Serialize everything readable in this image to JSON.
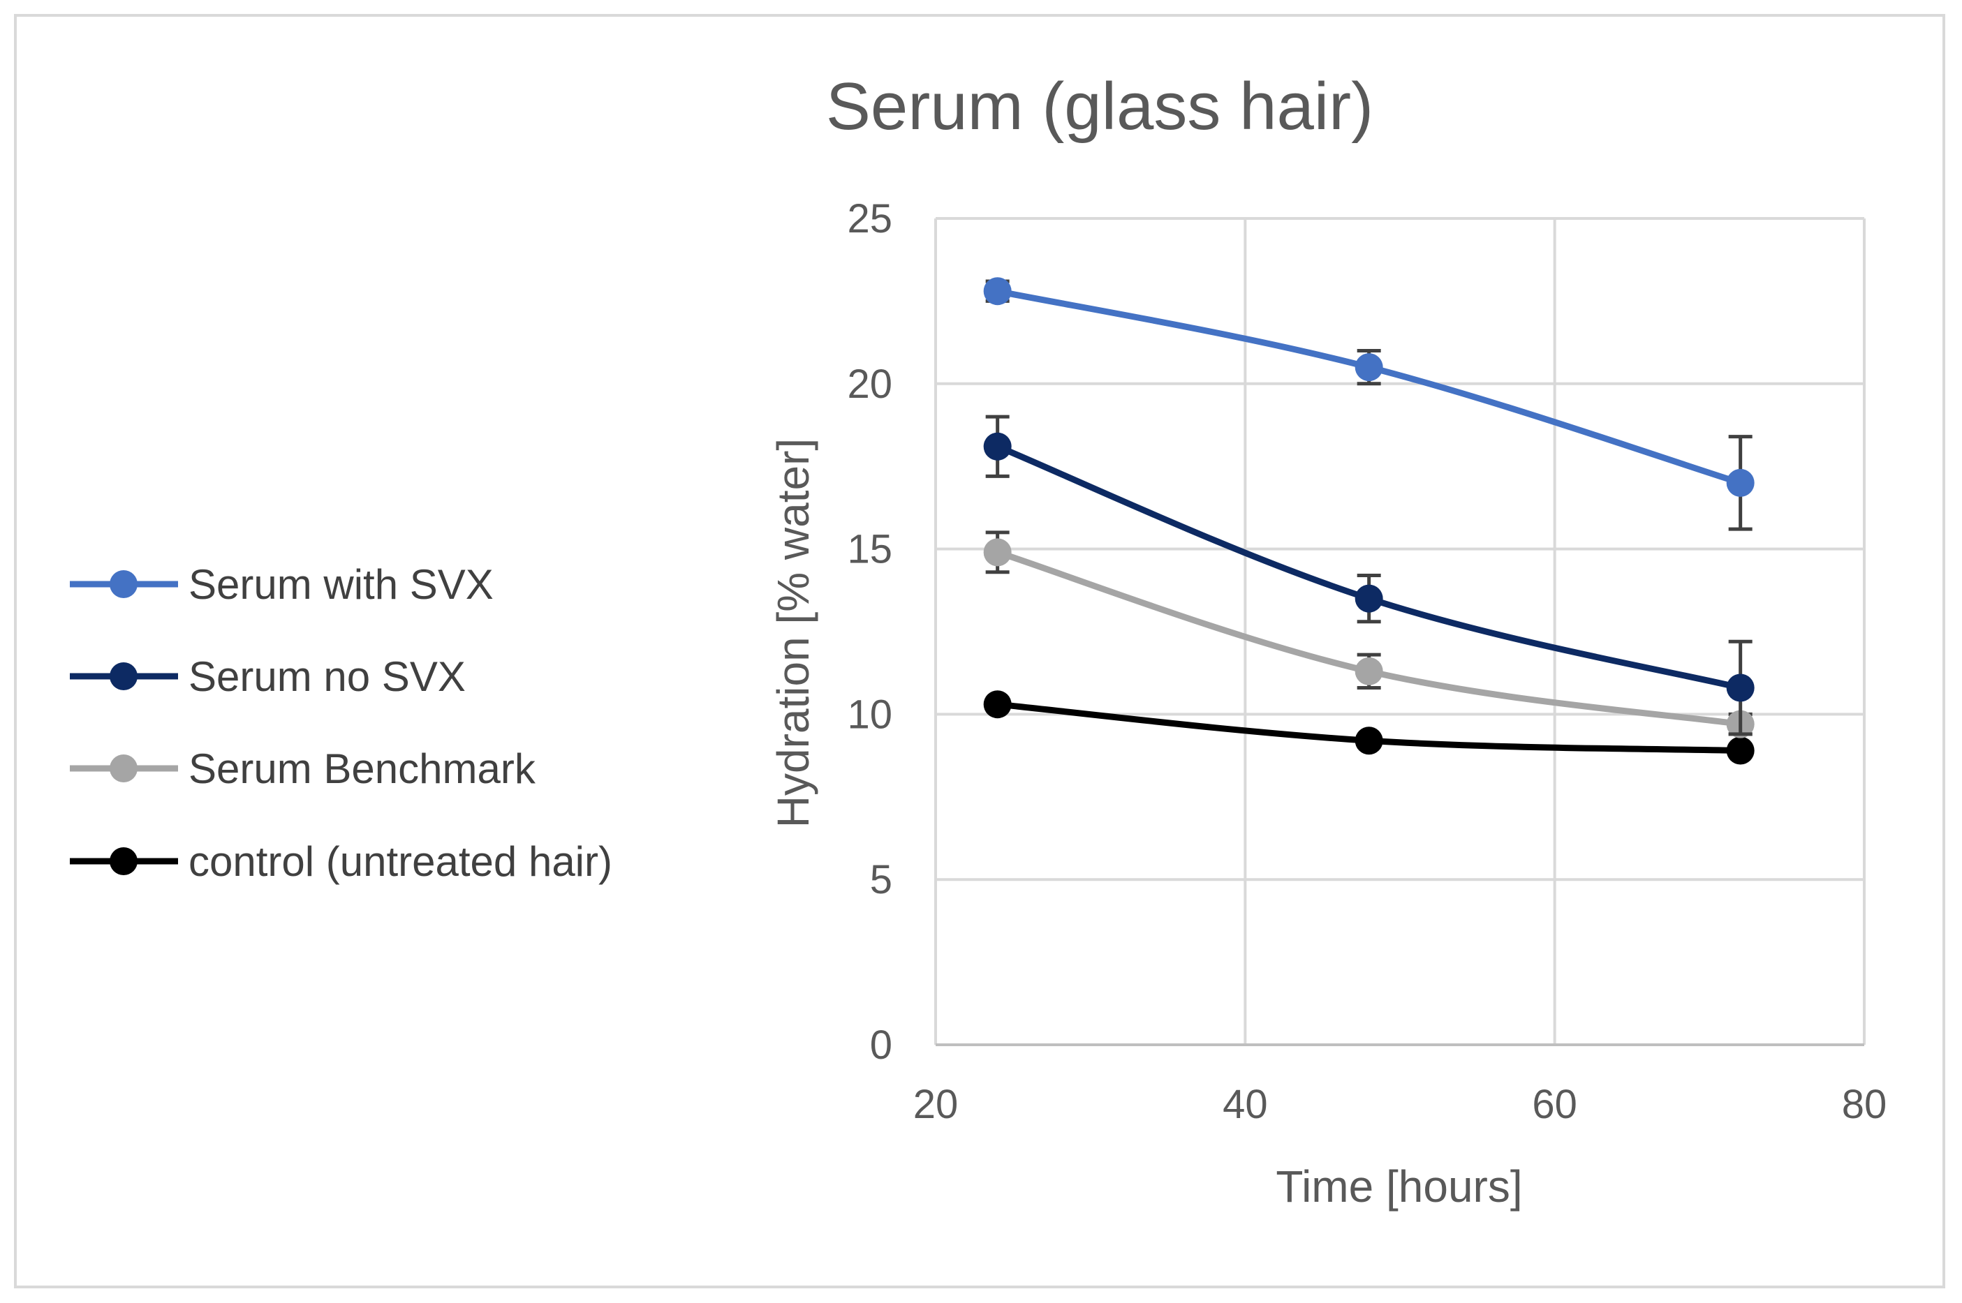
{
  "chart_data": {
    "type": "line",
    "title": "Serum (glass hair)",
    "xlabel": "Time [hours]",
    "ylabel": "Hydration [% water]",
    "xlim": [
      20,
      80
    ],
    "ylim": [
      0,
      25
    ],
    "x_ticks": [
      "20",
      "40",
      "60",
      "80"
    ],
    "y_ticks": [
      "0",
      "5",
      "10",
      "15",
      "20",
      "25"
    ],
    "x": [
      24,
      48,
      72
    ],
    "grid": true,
    "legend_position": "left",
    "series": [
      {
        "name": "Serum with SVX",
        "color": "#4472c4",
        "values": [
          22.8,
          20.5,
          17.0
        ],
        "errors": [
          0.3,
          0.5,
          1.4
        ]
      },
      {
        "name": "Serum no SVX",
        "color": "#0d2a63",
        "values": [
          18.1,
          13.5,
          10.8
        ],
        "errors": [
          0.9,
          0.7,
          1.4
        ]
      },
      {
        "name": "Serum Benchmark",
        "color": "#a5a5a5",
        "values": [
          14.9,
          11.3,
          9.7
        ],
        "errors": [
          0.6,
          0.5,
          0.3
        ]
      },
      {
        "name": "control (untreated hair)",
        "color": "#000000",
        "values": [
          10.3,
          9.2,
          8.9
        ],
        "errors": [
          0.0,
          0.0,
          0.0
        ]
      }
    ]
  }
}
